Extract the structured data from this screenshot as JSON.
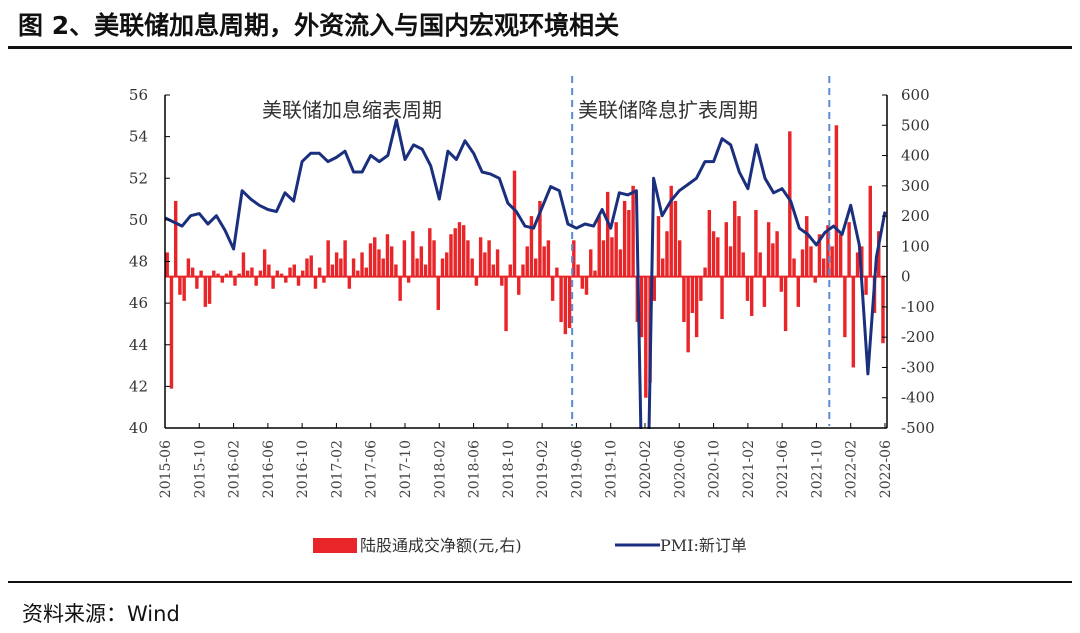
{
  "title": "图 2、美联储加息周期，外资流入与国内宏观环境相关",
  "source": "资料来源：Wind",
  "chart_data": {
    "type": "bar+line",
    "x_start": "2015-06",
    "x_end": "2022-06",
    "x_tick_labels": [
      "2015-06",
      "2015-10",
      "2016-02",
      "2016-06",
      "2016-10",
      "2017-02",
      "2017-06",
      "2017-10",
      "2018-02",
      "2018-06",
      "2018-10",
      "2019-02",
      "2019-06",
      "2019-10",
      "2020-02",
      "2020-06",
      "2020-10",
      "2021-02",
      "2021-06",
      "2021-10",
      "2022-02",
      "2022-06"
    ],
    "y_left": {
      "min": 40,
      "max": 56,
      "ticks": [
        40,
        42,
        44,
        46,
        48,
        50,
        52,
        54,
        56
      ]
    },
    "y_right": {
      "min": -500,
      "max": 600,
      "ticks": [
        -500,
        -400,
        -300,
        -200,
        -100,
        0,
        100,
        200,
        300,
        400,
        500,
        600
      ]
    },
    "grid": false,
    "legend_position": "bottom",
    "colors": {
      "bars": "#e8262a",
      "line": "#1a2f7d",
      "period_line": "#5b8bd6"
    },
    "annotations": [
      {
        "text": "美联储加息缩表周期"
      },
      {
        "text": "美联储降息扩表周期"
      }
    ],
    "period_dividers": [
      "2019-05",
      "2021-11"
    ],
    "series": [
      {
        "name": "陆股通成交净额(元,右)",
        "type": "bar",
        "axis": "right",
        "frequency": "semi-monthly",
        "values": [
          80,
          -370,
          250,
          -60,
          -80,
          60,
          30,
          -40,
          20,
          -100,
          -90,
          20,
          10,
          -20,
          10,
          20,
          -30,
          10,
          80,
          20,
          30,
          -30,
          20,
          90,
          40,
          -40,
          20,
          10,
          -20,
          30,
          40,
          -30,
          20,
          60,
          70,
          -40,
          30,
          -20,
          120,
          40,
          80,
          60,
          120,
          -40,
          60,
          20,
          80,
          30,
          110,
          130,
          90,
          60,
          140,
          100,
          40,
          -80,
          120,
          -20,
          150,
          60,
          100,
          40,
          160,
          120,
          -110,
          60,
          80,
          140,
          160,
          180,
          170,
          120,
          60,
          -30,
          130,
          80,
          120,
          40,
          90,
          -30,
          -180,
          40,
          350,
          -60,
          40,
          100,
          200,
          60,
          250,
          100,
          120,
          -80,
          30,
          -150,
          -190,
          -170,
          120,
          40,
          -40,
          -60,
          90,
          20,
          200,
          120,
          280,
          130,
          180,
          90,
          250,
          220,
          300,
          -150,
          -200,
          -400,
          -350,
          -80,
          200,
          60,
          150,
          300,
          250,
          120,
          -150,
          -250,
          -120,
          -200,
          -80,
          30,
          220,
          150,
          130,
          -140,
          180,
          100,
          250,
          200,
          80,
          -80,
          -130,
          220,
          80,
          -100,
          180,
          110,
          150,
          -50,
          -180,
          480,
          60,
          -100,
          90,
          200,
          100,
          -20,
          140,
          60,
          170,
          100,
          500,
          140,
          -200,
          180,
          -300,
          80,
          100,
          -60,
          300,
          -120,
          150,
          -220
        ]
      },
      {
        "name": "PMI:新订单",
        "type": "line",
        "axis": "left",
        "frequency": "monthly",
        "values": [
          50.1,
          49.9,
          49.7,
          50.2,
          50.3,
          49.8,
          50.2,
          49.5,
          48.6,
          51.4,
          51.0,
          50.7,
          50.5,
          50.4,
          51.3,
          50.9,
          52.8,
          53.2,
          53.2,
          52.8,
          53.0,
          53.3,
          52.3,
          52.3,
          53.1,
          52.8,
          53.1,
          54.8,
          52.9,
          53.6,
          53.4,
          52.6,
          51.0,
          53.3,
          52.9,
          53.8,
          53.2,
          52.3,
          52.2,
          52.0,
          50.8,
          50.4,
          49.7,
          49.6,
          50.6,
          51.6,
          51.4,
          49.8,
          49.6,
          49.8,
          49.7,
          50.5,
          49.6,
          51.3,
          51.2,
          51.4,
          29.3,
          52.0,
          50.2,
          50.9,
          51.4,
          51.7,
          52.0,
          52.8,
          52.8,
          53.9,
          53.6,
          52.3,
          51.5,
          53.6,
          52.0,
          51.3,
          51.5,
          50.9,
          49.6,
          49.3,
          48.8,
          49.4,
          49.7,
          49.3,
          50.7,
          48.8,
          42.6,
          48.2,
          50.4
        ]
      }
    ]
  }
}
